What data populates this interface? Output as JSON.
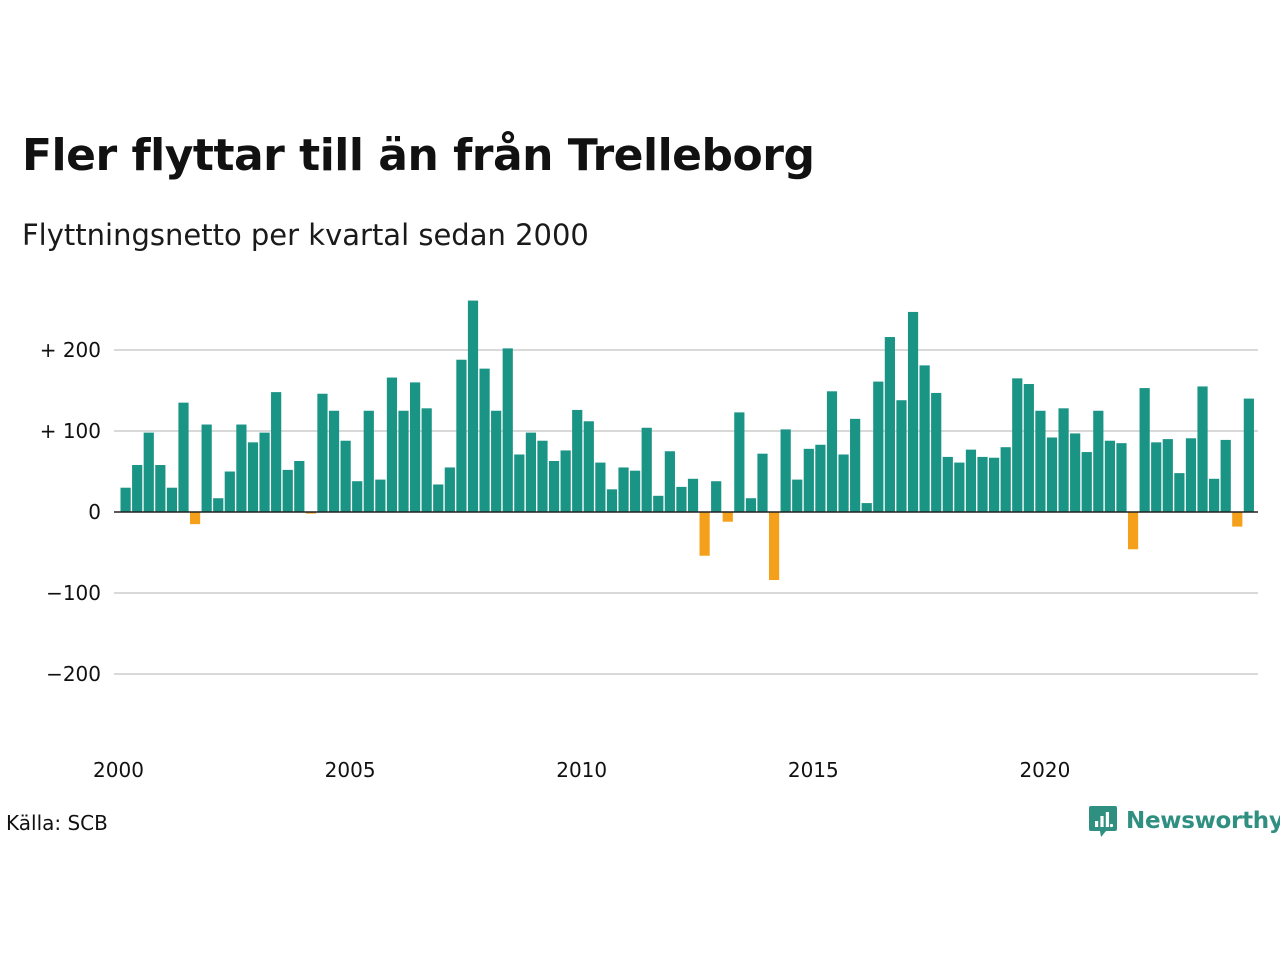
{
  "header": {
    "title": "Fler flyttar till än från Trelleborg",
    "subtitle": "Flyttningsnetto per kvartal sedan 2000"
  },
  "footer": {
    "source": "Källa: SCB",
    "brand": "Newsworthy",
    "brand_icon": "newsworthy-logo-icon"
  },
  "colors": {
    "positive": "#1a9485",
    "negative": "#f5a01a",
    "grid": "#d9d9d9",
    "baseline": "#222222",
    "brand": "#2f8f80"
  },
  "chart_data": {
    "type": "bar",
    "title": "Fler flyttar till än från Trelleborg",
    "subtitle": "Flyttningsnetto per kvartal sedan 2000",
    "xlabel": "",
    "ylabel": "",
    "ylim": [
      -250,
      270
    ],
    "grid": true,
    "y_ticks": [
      {
        "value": 200,
        "label": "+ 200"
      },
      {
        "value": 100,
        "label": "+ 100"
      },
      {
        "value": 0,
        "label": "0"
      },
      {
        "value": -100,
        "label": "−100"
      },
      {
        "value": -200,
        "label": "−200"
      }
    ],
    "x_ticks": [
      {
        "value": 2000,
        "label": "2000"
      },
      {
        "value": 2005,
        "label": "2005"
      },
      {
        "value": 2010,
        "label": "2010"
      },
      {
        "value": 2015,
        "label": "2015"
      },
      {
        "value": 2020,
        "label": "2020"
      }
    ],
    "x_start": "2000-Q1",
    "values": [
      30,
      58,
      98,
      58,
      30,
      135,
      -15,
      108,
      17,
      50,
      108,
      86,
      98,
      148,
      52,
      63,
      -2,
      146,
      125,
      88,
      38,
      125,
      40,
      166,
      125,
      160,
      128,
      34,
      55,
      188,
      261,
      177,
      125,
      202,
      71,
      98,
      88,
      63,
      76,
      126,
      112,
      61,
      28,
      55,
      51,
      104,
      20,
      75,
      31,
      41,
      -54,
      38,
      -12,
      123,
      17,
      72,
      -84,
      102,
      40,
      78,
      83,
      149,
      71,
      115,
      11,
      161,
      216,
      138,
      247,
      181,
      147,
      68,
      61,
      77,
      68,
      67,
      80,
      165,
      158,
      125,
      92,
      128,
      97,
      74,
      125,
      88,
      85,
      -46,
      153,
      86,
      90,
      48,
      91,
      155,
      41,
      89,
      -18,
      140
    ]
  }
}
